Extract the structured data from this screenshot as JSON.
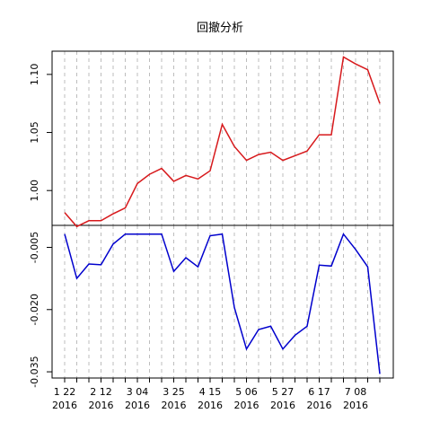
{
  "chart_data": {
    "type": "line",
    "title": "回撤分析",
    "grid": true,
    "x_tick_labels": [
      {
        "top": "1 22",
        "bottom": "2016"
      },
      {
        "top": "2 12",
        "bottom": "2016"
      },
      {
        "top": "3 04",
        "bottom": "2016"
      },
      {
        "top": "3 25",
        "bottom": "2016"
      },
      {
        "top": "4 15",
        "bottom": "2016"
      },
      {
        "top": "5 06",
        "bottom": "2016"
      },
      {
        "top": "5 27",
        "bottom": "2016"
      },
      {
        "top": "6 17",
        "bottom": "2016"
      },
      {
        "top": "7 08",
        "bottom": "2016"
      }
    ],
    "panels": [
      {
        "name": "top",
        "ylim": [
          0.97,
          1.12
        ],
        "yticks": [
          {
            "value": 1.0,
            "label": "1.00"
          },
          {
            "value": 1.05,
            "label": "1.05"
          },
          {
            "value": 1.1,
            "label": "1.10"
          }
        ],
        "color": "#d7191c",
        "values": [
          0.981,
          0.969,
          0.974,
          0.974,
          0.98,
          0.985,
          1.006,
          1.014,
          1.019,
          1.008,
          1.013,
          1.01,
          1.017,
          1.057,
          1.038,
          1.026,
          1.031,
          1.033,
          1.026,
          1.03,
          1.034,
          1.048,
          1.048,
          1.115,
          1.109,
          1.104,
          1.075
        ]
      },
      {
        "name": "bottom",
        "ylim": [
          -0.0365,
          0.0003
        ],
        "yticks": [
          {
            "value": -0.005,
            "label": "-0.005"
          },
          {
            "value": -0.02,
            "label": "-0.020"
          },
          {
            "value": -0.035,
            "label": "-0.035"
          }
        ],
        "color": "#0000cd",
        "values": [
          -0.0018,
          -0.0125,
          -0.009,
          -0.0092,
          -0.0042,
          -0.0018,
          -0.0018,
          -0.0018,
          -0.0018,
          -0.0108,
          -0.0075,
          -0.0097,
          -0.0022,
          -0.0018,
          -0.0195,
          -0.0295,
          -0.0248,
          -0.024,
          -0.0295,
          -0.0262,
          -0.024,
          -0.0093,
          -0.0095,
          -0.0018,
          -0.0055,
          -0.0097,
          -0.0355
        ]
      }
    ]
  }
}
